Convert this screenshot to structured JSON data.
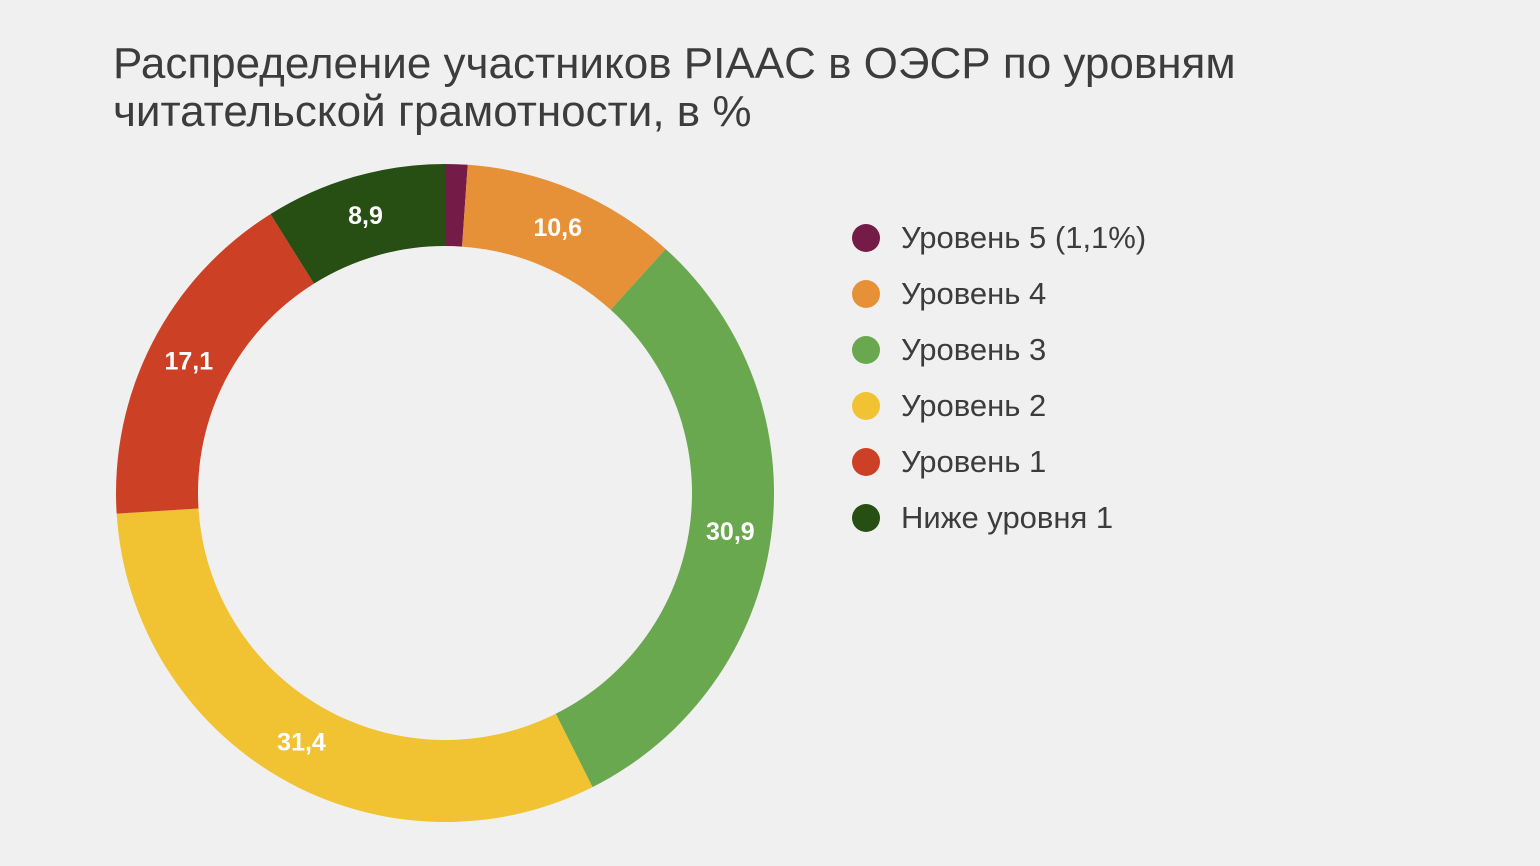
{
  "title": "Распределение участников PIAAC в ОЭСР по уровням читательской грамотности, в %",
  "chart_data": {
    "type": "pie",
    "variant": "donut",
    "title": "Распределение участников PIAAC в ОЭСР по уровням читательской грамотности, в %",
    "legend_position": "right",
    "slices": [
      {
        "name": "Уровень 5 (1,1%)",
        "value": 1.1,
        "label": "",
        "color": "#741b47"
      },
      {
        "name": "Уровень 4",
        "value": 10.6,
        "label": "10,6",
        "color": "#e69138"
      },
      {
        "name": "Уровень 3",
        "value": 30.9,
        "label": "30,9",
        "color": "#6aa84f"
      },
      {
        "name": "Уровень 2",
        "value": 31.4,
        "label": "31,4",
        "color": "#f1c232"
      },
      {
        "name": "Уровень 1",
        "value": 17.1,
        "label": "17,1",
        "color": "#cc4125"
      },
      {
        "name": "Ниже уровня 1",
        "value": 8.9,
        "label": "8,9",
        "color": "#274e13"
      }
    ]
  }
}
